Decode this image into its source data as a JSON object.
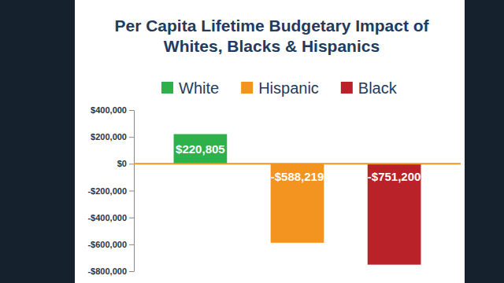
{
  "chart_data": {
    "type": "bar",
    "title": "Per Capita Lifetime Budgetary Impact of Whites, Blacks & Hispanics",
    "categories": [
      null
    ],
    "series": [
      {
        "name": "White",
        "color": "#2eb04a",
        "values": [
          220805
        ],
        "value_labels": [
          "$220,805"
        ]
      },
      {
        "name": "Hispanic",
        "color": "#f39320",
        "values": [
          -588219
        ],
        "value_labels": [
          "-$588,219"
        ]
      },
      {
        "name": "Black",
        "color": "#b82228",
        "values": [
          -751200
        ],
        "value_labels": [
          "-$751,200"
        ]
      }
    ],
    "ylim": [
      -800000,
      400000
    ],
    "yticks": [
      {
        "value": 400000,
        "label": "$400,000"
      },
      {
        "value": 200000,
        "label": "$200,000"
      },
      {
        "value": 0,
        "label": "$0"
      },
      {
        "value": -200000,
        "label": "-$200,000"
      },
      {
        "value": -400000,
        "label": "-$400,000"
      },
      {
        "value": -600000,
        "label": "-$600,000"
      },
      {
        "value": -800000,
        "label": "-$800,000"
      }
    ],
    "grid": false,
    "legend": "top",
    "data_labels": true,
    "tick_labels": "y"
  }
}
